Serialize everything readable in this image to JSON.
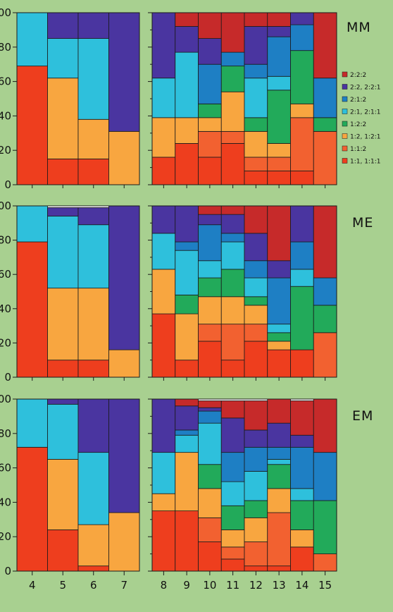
{
  "colors": {
    "background": "#a8d090",
    "plot_background": "#ffffff",
    "series": {
      "1:1, 1:1:1": "#ee3e1e",
      "1:1:2": "#f26130",
      "1:2, 1:2:1": "#f8a640",
      "1:2:2": "#22aa5a",
      "2:1, 2:1:1": "#2ec0dc",
      "2:1:2": "#1e7fc4",
      "2:2, 2:2:1": "#4a35a0",
      "2:2:2": "#c62a2a"
    }
  },
  "legend": {
    "items": [
      "2:2:2",
      "2:2, 2:2:1",
      "2:1:2",
      "2:1, 2:1:1",
      "1:2:2",
      "1:2, 1:2:1",
      "1:1:2",
      "1:1, 1:1:1"
    ]
  },
  "x_tick_labels": [
    "4",
    "5",
    "6",
    "7",
    "8",
    "9",
    "10",
    "11",
    "12",
    "13",
    "14",
    "15"
  ],
  "y_tick_labels": [
    "0",
    "20",
    "40",
    "60",
    "80",
    "100"
  ],
  "chart_data": [
    {
      "type": "bar",
      "stacked": true,
      "panel": "MM",
      "ylim": [
        0,
        100
      ],
      "categories": [
        "4",
        "5",
        "6",
        "7",
        "8",
        "9",
        "10",
        "11",
        "12",
        "13",
        "14",
        "15"
      ],
      "series": [
        {
          "name": "1:1, 1:1:1",
          "values": [
            69,
            15,
            15,
            0,
            16,
            24,
            16,
            24,
            8,
            8,
            8,
            0
          ]
        },
        {
          "name": "1:1:2",
          "values": [
            0,
            0,
            0,
            0,
            0,
            0,
            15,
            7,
            8,
            8,
            31,
            31
          ]
        },
        {
          "name": "1:2, 1:2:1",
          "values": [
            0,
            47,
            23,
            31,
            23,
            15,
            8,
            23,
            15,
            8,
            8,
            0
          ]
        },
        {
          "name": "1:2:2",
          "values": [
            0,
            0,
            0,
            0,
            0,
            0,
            8,
            15,
            8,
            31,
            31,
            8
          ]
        },
        {
          "name": "2:1, 2:1:1",
          "values": [
            31,
            23,
            47,
            0,
            23,
            38,
            0,
            0,
            23,
            8,
            0,
            0
          ]
        },
        {
          "name": "2:1:2",
          "values": [
            0,
            0,
            0,
            0,
            0,
            0,
            23,
            8,
            8,
            23,
            15,
            23
          ]
        },
        {
          "name": "2:2, 2:2:1",
          "values": [
            0,
            15,
            15,
            69,
            38,
            15,
            15,
            0,
            22,
            6,
            7,
            0
          ]
        },
        {
          "name": "2:2:2",
          "values": [
            0,
            0,
            0,
            0,
            0,
            8,
            15,
            23,
            8,
            8,
            0,
            38
          ]
        }
      ]
    },
    {
      "type": "bar",
      "stacked": true,
      "panel": "ME",
      "ylim": [
        0,
        100
      ],
      "categories": [
        "4",
        "5",
        "6",
        "7",
        "8",
        "9",
        "10",
        "11",
        "12",
        "13",
        "14",
        "15"
      ],
      "series": [
        {
          "name": "1:1, 1:1:1",
          "values": [
            79,
            10,
            10,
            0,
            37,
            10,
            21,
            10,
            21,
            16,
            16,
            0
          ]
        },
        {
          "name": "1:1:2",
          "values": [
            0,
            0,
            0,
            0,
            0,
            0,
            10,
            21,
            10,
            0,
            0,
            26
          ]
        },
        {
          "name": "1:2, 1:2:1",
          "values": [
            0,
            42,
            42,
            16,
            26,
            27,
            16,
            16,
            11,
            5,
            0,
            0
          ]
        },
        {
          "name": "1:2:2",
          "values": [
            0,
            0,
            0,
            0,
            0,
            11,
            11,
            16,
            5,
            5,
            37,
            16
          ]
        },
        {
          "name": "2:1, 2:1:1",
          "values": [
            21,
            42,
            37,
            0,
            21,
            26,
            10,
            16,
            11,
            5,
            10,
            0
          ]
        },
        {
          "name": "2:1:2",
          "values": [
            0,
            0,
            0,
            0,
            0,
            5,
            21,
            5,
            10,
            27,
            16,
            16
          ]
        },
        {
          "name": "2:2, 2:2:1",
          "values": [
            0,
            5,
            10,
            84,
            16,
            21,
            6,
            11,
            16,
            10,
            21,
            0
          ]
        },
        {
          "name": "2:2:2",
          "values": [
            0,
            0,
            0,
            0,
            0,
            0,
            5,
            5,
            16,
            32,
            0,
            42
          ]
        }
      ]
    },
    {
      "type": "bar",
      "stacked": true,
      "panel": "EM",
      "ylim": [
        0,
        100
      ],
      "categories": [
        "4",
        "5",
        "6",
        "7",
        "8",
        "9",
        "10",
        "11",
        "12",
        "13",
        "14",
        "15"
      ],
      "series": [
        {
          "name": "1:1, 1:1:1",
          "values": [
            72,
            24,
            3,
            0,
            35,
            35,
            17,
            7,
            3,
            3,
            14,
            0
          ]
        },
        {
          "name": "1:1:2",
          "values": [
            0,
            0,
            0,
            0,
            0,
            0,
            14,
            7,
            14,
            31,
            0,
            10
          ]
        },
        {
          "name": "1:2, 1:2:1",
          "values": [
            0,
            41,
            24,
            34,
            10,
            34,
            17,
            10,
            14,
            14,
            10,
            0
          ]
        },
        {
          "name": "1:2:2",
          "values": [
            0,
            0,
            0,
            0,
            0,
            0,
            14,
            14,
            10,
            14,
            17,
            31
          ]
        },
        {
          "name": "2:1, 2:1:1",
          "values": [
            28,
            32,
            42,
            0,
            24,
            10,
            24,
            14,
            17,
            3,
            7,
            0
          ]
        },
        {
          "name": "2:1:2",
          "values": [
            0,
            0,
            0,
            0,
            0,
            3,
            7,
            17,
            14,
            7,
            24,
            28
          ]
        },
        {
          "name": "2:2, 2:2:1",
          "values": [
            0,
            3,
            31,
            66,
            31,
            14,
            2,
            20,
            10,
            14,
            7,
            0
          ]
        },
        {
          "name": "2:2:2",
          "values": [
            0,
            0,
            0,
            0,
            0,
            4,
            4,
            10,
            17,
            14,
            20,
            31
          ]
        }
      ]
    }
  ]
}
